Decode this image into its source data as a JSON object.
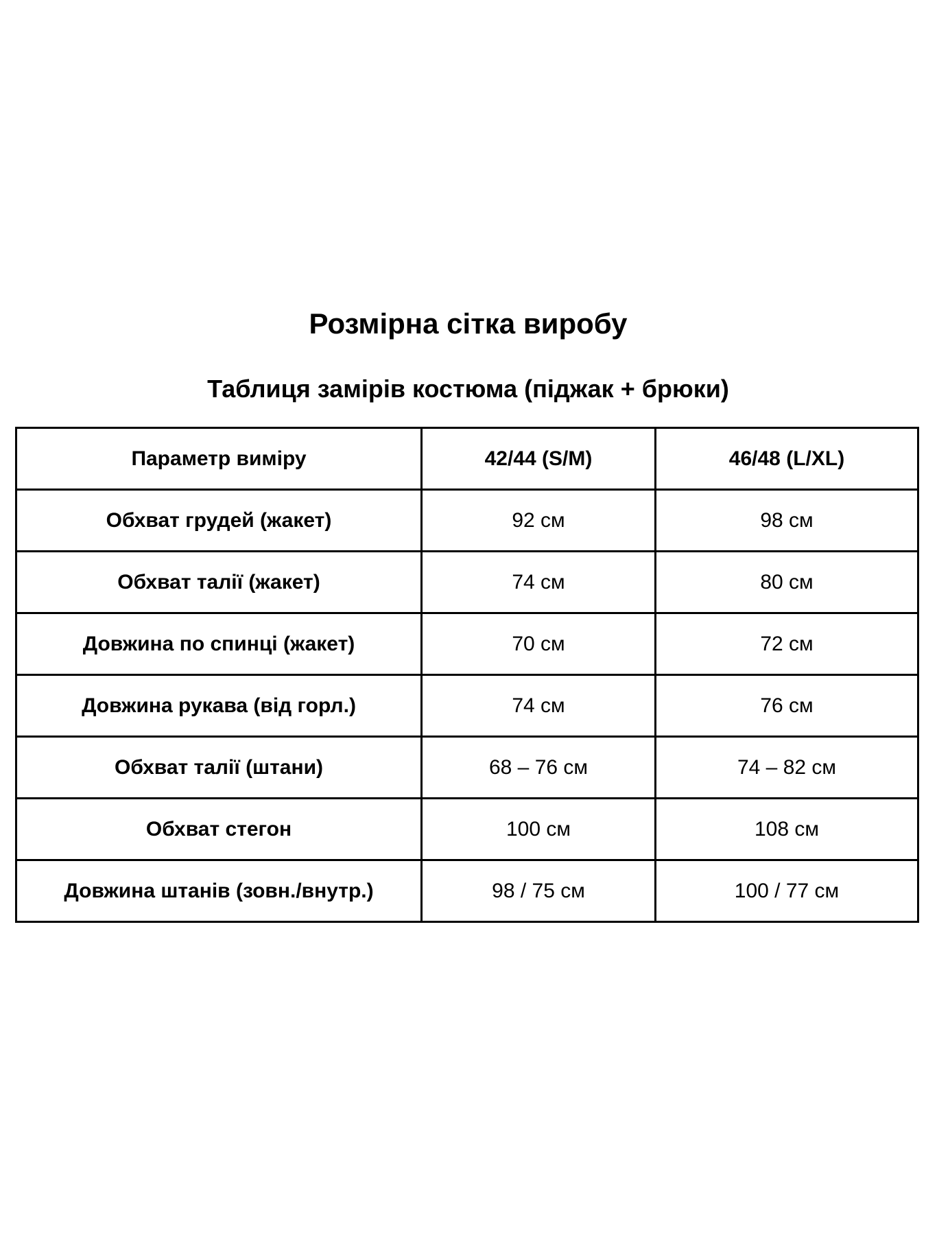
{
  "title": "Розмірна сітка виробу",
  "subtitle": "Таблиця замірів костюма (піджак + брюки)",
  "table": {
    "headers": [
      "Параметр виміру",
      "42/44 (S/M)",
      "46/48 (L/XL)"
    ],
    "rows": [
      [
        "Обхват грудей (жакет)",
        "92 см",
        "98 см"
      ],
      [
        "Обхват талії (жакет)",
        "74 см",
        "80 см"
      ],
      [
        "Довжина по спинці (жакет)",
        "70 см",
        "72 см"
      ],
      [
        "Довжина рукава (від горл.)",
        "74 см",
        "76 см"
      ],
      [
        "Обхват талії (штани)",
        "68 – 76 см",
        "74 – 82 см"
      ],
      [
        "Обхват стегон",
        "100 см",
        "108 см"
      ],
      [
        "Довжина штанів (зовн./внутр.)",
        "98 / 75 см",
        "100 / 77 см"
      ]
    ]
  }
}
